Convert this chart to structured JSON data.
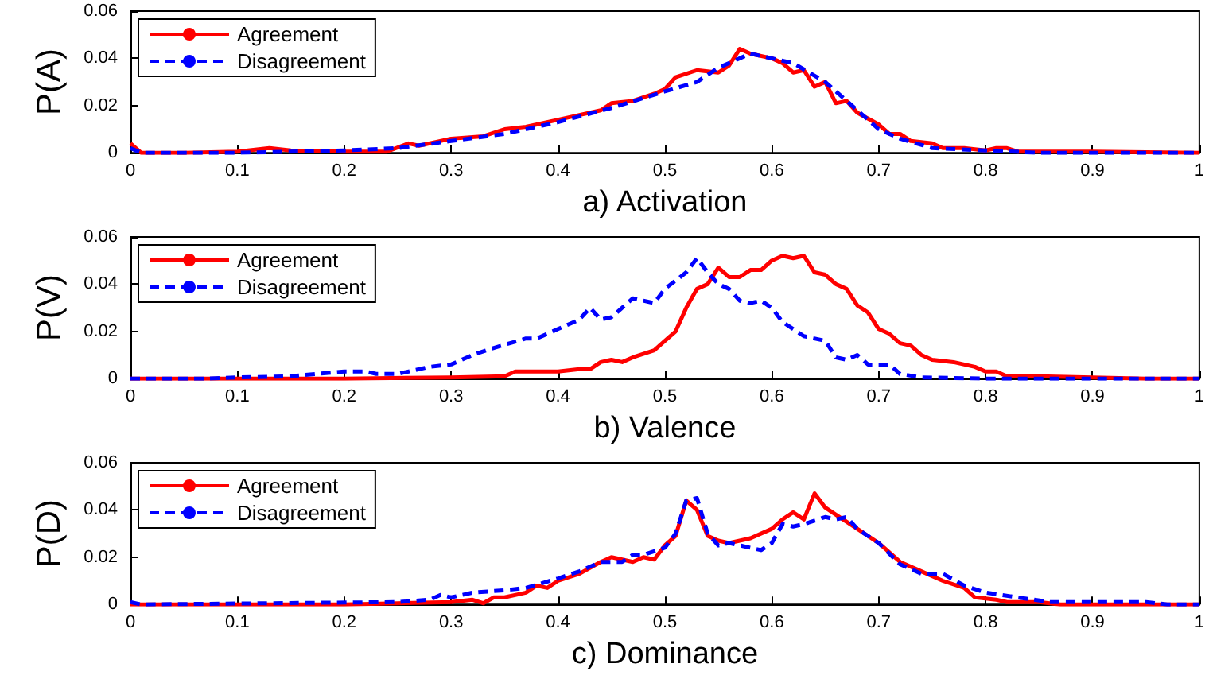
{
  "chart_data": [
    {
      "type": "line",
      "xlabel": "a) Activation",
      "ylabel": "P(A)",
      "xlim": [
        0,
        1
      ],
      "xticks": [
        0,
        0.1,
        0.2,
        0.3,
        0.4,
        0.5,
        0.6,
        0.7,
        0.8,
        0.9,
        1
      ],
      "ylim": [
        0,
        0.06
      ],
      "yticks": [
        0,
        0.02,
        0.04,
        0.06
      ],
      "legend": "top left",
      "grid": false,
      "marker": "none",
      "series": [
        {
          "name": "Agreement",
          "color": "#ff0000",
          "line_style": "solid",
          "x": [
            0,
            0.01,
            0.05,
            0.1,
            0.13,
            0.15,
            0.2,
            0.24,
            0.26,
            0.27,
            0.3,
            0.33,
            0.35,
            0.37,
            0.4,
            0.42,
            0.44,
            0.45,
            0.47,
            0.49,
            0.5,
            0.51,
            0.53,
            0.55,
            0.56,
            0.57,
            0.58,
            0.6,
            0.61,
            0.62,
            0.63,
            0.64,
            0.65,
            0.66,
            0.67,
            0.68,
            0.7,
            0.71,
            0.72,
            0.73,
            0.75,
            0.76,
            0.78,
            0.8,
            0.81,
            0.82,
            0.83,
            0.9,
            1
          ],
          "values": [
            0.004,
            0,
            0,
            0.0005,
            0.002,
            0.001,
            0.0005,
            0.0005,
            0.004,
            0.003,
            0.006,
            0.007,
            0.01,
            0.011,
            0.014,
            0.016,
            0.018,
            0.021,
            0.022,
            0.025,
            0.027,
            0.032,
            0.035,
            0.034,
            0.037,
            0.044,
            0.042,
            0.04,
            0.038,
            0.034,
            0.035,
            0.028,
            0.03,
            0.021,
            0.022,
            0.017,
            0.012,
            0.008,
            0.008,
            0.005,
            0.004,
            0.002,
            0.002,
            0.001,
            0.002,
            0.002,
            0.0005,
            0.0005,
            0
          ]
        },
        {
          "name": "Disagreement",
          "color": "#0000ff",
          "line_style": "dashed",
          "x": [
            0,
            0.01,
            0.1,
            0.2,
            0.25,
            0.3,
            0.35,
            0.4,
            0.45,
            0.5,
            0.53,
            0.55,
            0.58,
            0.6,
            0.62,
            0.65,
            0.68,
            0.7,
            0.72,
            0.75,
            0.8,
            0.85,
            1
          ],
          "values": [
            0.002,
            0,
            0,
            0.001,
            0.002,
            0.005,
            0.008,
            0.013,
            0.019,
            0.026,
            0.03,
            0.036,
            0.042,
            0.04,
            0.038,
            0.03,
            0.018,
            0.01,
            0.006,
            0.002,
            0.001,
            0,
            0
          ]
        }
      ]
    },
    {
      "type": "line",
      "xlabel": "b) Valence",
      "ylabel": "P(V)",
      "xlim": [
        0,
        1
      ],
      "xticks": [
        0,
        0.1,
        0.2,
        0.3,
        0.4,
        0.5,
        0.6,
        0.7,
        0.8,
        0.9,
        1
      ],
      "ylim": [
        0,
        0.06
      ],
      "yticks": [
        0,
        0.02,
        0.04,
        0.06
      ],
      "legend": "top left",
      "grid": false,
      "marker": "none",
      "series": [
        {
          "name": "Agreement",
          "color": "#ff0000",
          "line_style": "solid",
          "x": [
            0,
            0.2,
            0.3,
            0.35,
            0.36,
            0.39,
            0.4,
            0.42,
            0.43,
            0.44,
            0.45,
            0.46,
            0.47,
            0.49,
            0.5,
            0.51,
            0.52,
            0.53,
            0.54,
            0.55,
            0.56,
            0.57,
            0.58,
            0.59,
            0.6,
            0.61,
            0.62,
            0.63,
            0.64,
            0.65,
            0.66,
            0.67,
            0.68,
            0.69,
            0.7,
            0.71,
            0.72,
            0.73,
            0.74,
            0.75,
            0.77,
            0.79,
            0.8,
            0.81,
            0.82,
            0.85,
            0.9,
            0.95,
            1
          ],
          "values": [
            0,
            0,
            0.0005,
            0.001,
            0.003,
            0.003,
            0.003,
            0.004,
            0.004,
            0.007,
            0.008,
            0.007,
            0.009,
            0.012,
            0.016,
            0.02,
            0.03,
            0.038,
            0.04,
            0.047,
            0.043,
            0.043,
            0.046,
            0.046,
            0.05,
            0.052,
            0.051,
            0.052,
            0.045,
            0.044,
            0.04,
            0.038,
            0.031,
            0.028,
            0.021,
            0.019,
            0.015,
            0.014,
            0.01,
            0.008,
            0.007,
            0.005,
            0.003,
            0.003,
            0.001,
            0.001,
            0.0005,
            0,
            0
          ]
        },
        {
          "name": "Disagreement",
          "color": "#0000ff",
          "line_style": "dashed",
          "x": [
            0,
            0.07,
            0.1,
            0.15,
            0.2,
            0.22,
            0.23,
            0.25,
            0.28,
            0.3,
            0.32,
            0.34,
            0.37,
            0.38,
            0.4,
            0.42,
            0.43,
            0.44,
            0.45,
            0.47,
            0.49,
            0.5,
            0.52,
            0.53,
            0.54,
            0.55,
            0.56,
            0.57,
            0.58,
            0.59,
            0.6,
            0.61,
            0.63,
            0.65,
            0.66,
            0.67,
            0.68,
            0.69,
            0.71,
            0.72,
            0.74,
            0.8,
            1
          ],
          "values": [
            0,
            0,
            0.0005,
            0.001,
            0.003,
            0.003,
            0.002,
            0.002,
            0.005,
            0.006,
            0.01,
            0.013,
            0.017,
            0.017,
            0.021,
            0.025,
            0.03,
            0.025,
            0.026,
            0.034,
            0.032,
            0.038,
            0.045,
            0.051,
            0.045,
            0.04,
            0.038,
            0.033,
            0.032,
            0.033,
            0.03,
            0.024,
            0.018,
            0.016,
            0.009,
            0.008,
            0.01,
            0.006,
            0.006,
            0.002,
            0.0005,
            0,
            0
          ]
        }
      ]
    },
    {
      "type": "line",
      "xlabel": "c) Dominance",
      "ylabel": "P(D)",
      "xlim": [
        0,
        1
      ],
      "xticks": [
        0,
        0.1,
        0.2,
        0.3,
        0.4,
        0.5,
        0.6,
        0.7,
        0.8,
        0.9,
        1
      ],
      "ylim": [
        0,
        0.06
      ],
      "yticks": [
        0,
        0.02,
        0.04,
        0.06
      ],
      "legend": "top left",
      "grid": false,
      "marker": "none",
      "series": [
        {
          "name": "Agreement",
          "color": "#ff0000",
          "line_style": "solid",
          "x": [
            0,
            0.2,
            0.25,
            0.3,
            0.32,
            0.33,
            0.34,
            0.35,
            0.37,
            0.38,
            0.39,
            0.4,
            0.42,
            0.44,
            0.45,
            0.46,
            0.47,
            0.48,
            0.49,
            0.5,
            0.51,
            0.52,
            0.53,
            0.54,
            0.55,
            0.56,
            0.58,
            0.6,
            0.61,
            0.62,
            0.63,
            0.64,
            0.65,
            0.66,
            0.68,
            0.7,
            0.72,
            0.74,
            0.76,
            0.78,
            0.79,
            0.81,
            0.82,
            0.85,
            0.87,
            1
          ],
          "values": [
            0,
            0,
            0.0005,
            0.001,
            0.002,
            0.0005,
            0.003,
            0.003,
            0.005,
            0.008,
            0.007,
            0.01,
            0.013,
            0.018,
            0.02,
            0.019,
            0.018,
            0.02,
            0.019,
            0.025,
            0.029,
            0.044,
            0.04,
            0.029,
            0.027,
            0.026,
            0.028,
            0.032,
            0.036,
            0.039,
            0.036,
            0.047,
            0.041,
            0.038,
            0.032,
            0.026,
            0.018,
            0.014,
            0.01,
            0.007,
            0.003,
            0.002,
            0.001,
            0.001,
            0,
            0
          ]
        },
        {
          "name": "Disagreement",
          "color": "#0000ff",
          "line_style": "dashed",
          "x": [
            0,
            0.01,
            0.25,
            0.28,
            0.29,
            0.3,
            0.32,
            0.35,
            0.37,
            0.4,
            0.42,
            0.44,
            0.46,
            0.47,
            0.48,
            0.5,
            0.51,
            0.52,
            0.53,
            0.54,
            0.55,
            0.56,
            0.58,
            0.59,
            0.6,
            0.61,
            0.62,
            0.63,
            0.65,
            0.66,
            0.67,
            0.68,
            0.7,
            0.72,
            0.74,
            0.76,
            0.78,
            0.8,
            0.83,
            0.86,
            0.9,
            0.95,
            0.97,
            1
          ],
          "values": [
            0.001,
            0,
            0.001,
            0.002,
            0.004,
            0.003,
            0.005,
            0.006,
            0.007,
            0.011,
            0.014,
            0.018,
            0.018,
            0.021,
            0.021,
            0.024,
            0.03,
            0.044,
            0.045,
            0.03,
            0.025,
            0.026,
            0.024,
            0.023,
            0.026,
            0.034,
            0.033,
            0.034,
            0.037,
            0.036,
            0.037,
            0.032,
            0.026,
            0.017,
            0.013,
            0.013,
            0.008,
            0.005,
            0.003,
            0.001,
            0.001,
            0.001,
            0,
            0
          ]
        }
      ]
    }
  ]
}
